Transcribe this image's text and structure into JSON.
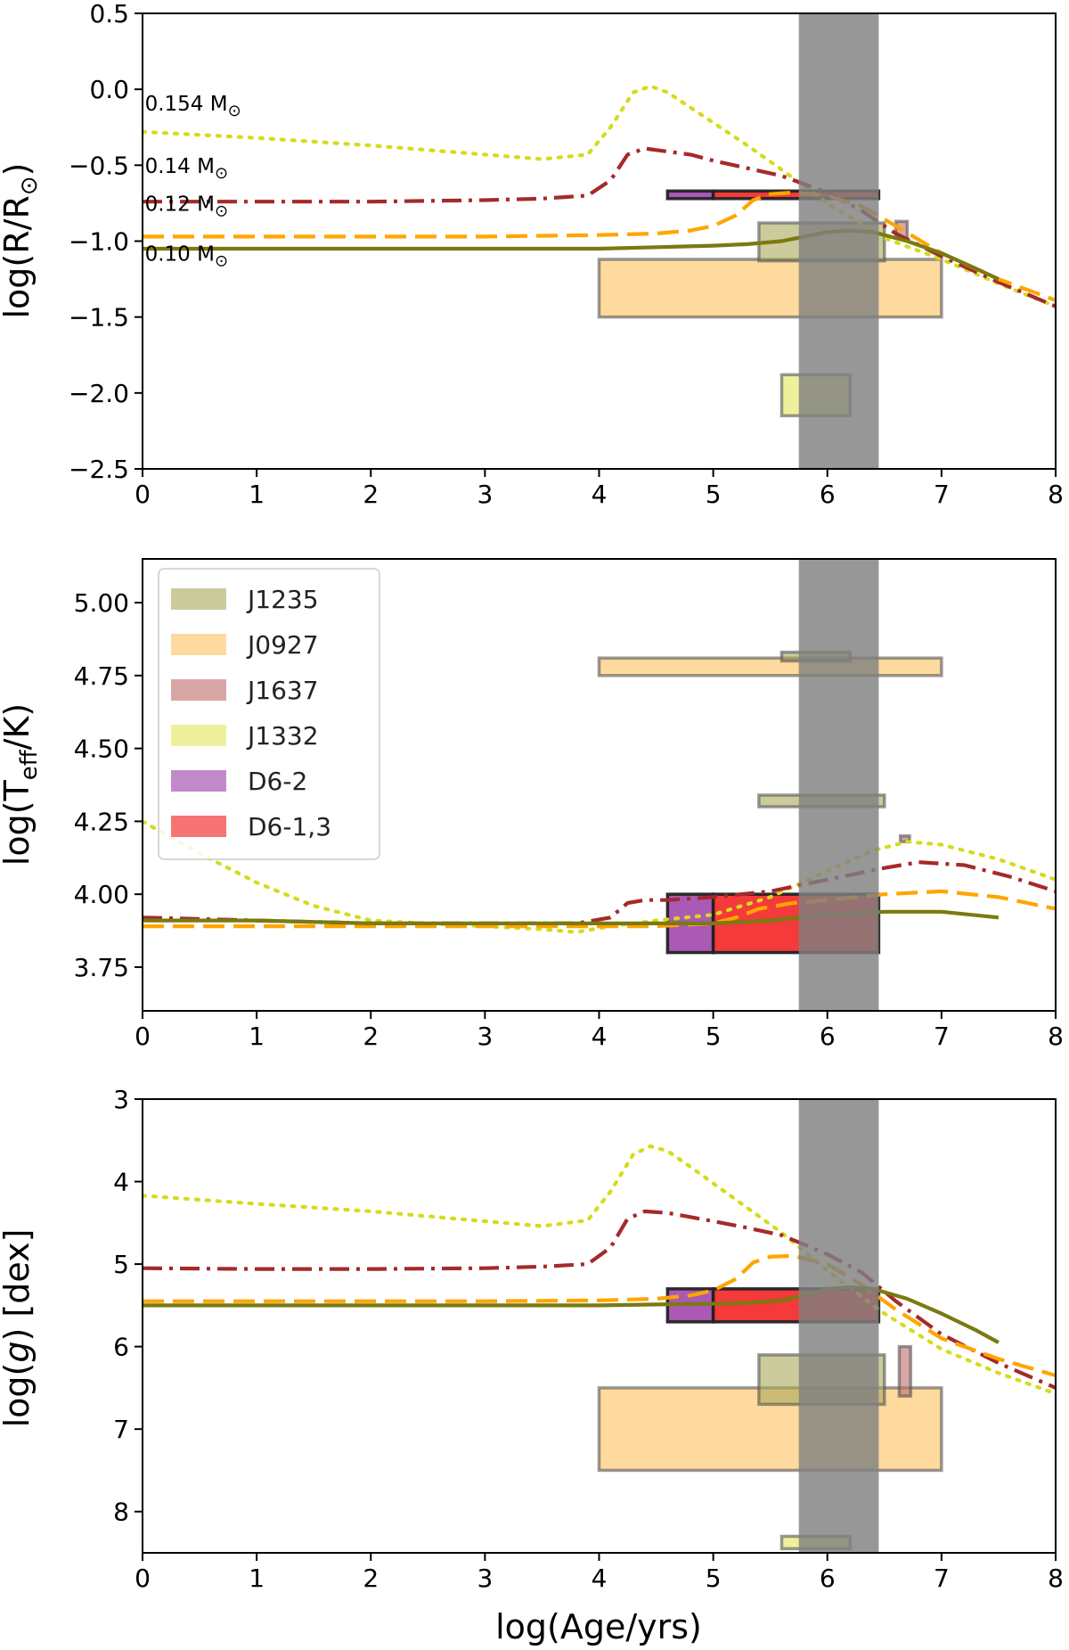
{
  "chart_data": {
    "type": "line",
    "description_xlabel": "log(Age/yrs)",
    "colors": {
      "m0154": "#d4dc1a",
      "m014": "#a52a2a",
      "m012": "#ffa500",
      "m010": "#7a7a10",
      "band": "#808080",
      "J1235": "#a8a85a",
      "J0927": "#fdc15e",
      "J1637": "#c06b6b",
      "J1332": "#e2e65a",
      "D6-2": "#9b3ca8",
      "D6-1,3": "#f21818"
    },
    "legend": {
      "entries": [
        {
          "label": "J1235",
          "key": "J1235"
        },
        {
          "label": "J0927",
          "key": "J0927"
        },
        {
          "label": "J1637",
          "key": "J1637"
        },
        {
          "label": "J1332",
          "key": "J1332"
        },
        {
          "label": "D6-2",
          "key": "D6-2"
        },
        {
          "label": "D6-1,3",
          "key": "D6-1,3"
        }
      ]
    },
    "age_band": [
      5.75,
      6.45
    ],
    "panels": [
      {
        "id": "radius",
        "ylabel_main": "log(R/R",
        "ylabel_sub": "⊙",
        "ylabel_end": ")",
        "xlim": [
          0,
          8
        ],
        "ylim": [
          -2.5,
          0.5
        ],
        "yinvert": false,
        "xticks": [
          "0",
          "1",
          "2",
          "3",
          "4",
          "5",
          "6",
          "7",
          "8"
        ],
        "yticks": [
          {
            "v": 0.5,
            "label": "0.5"
          },
          {
            "v": 0.0,
            "label": "0.0"
          },
          {
            "v": -0.5,
            "label": "−0.5"
          },
          {
            "v": -1.0,
            "label": "−1.0"
          },
          {
            "v": -1.5,
            "label": "−1.5"
          },
          {
            "v": -2.0,
            "label": "−2.0"
          },
          {
            "v": -2.5,
            "label": "−2.5"
          }
        ],
        "annotations": [
          {
            "x": 0.02,
            "y": -0.14,
            "text": "0.154 M",
            "sub": "⊙"
          },
          {
            "x": 0.02,
            "y": -0.55,
            "text": "0.14 M",
            "sub": "⊙"
          },
          {
            "x": 0.02,
            "y": -0.8,
            "text": "0.12 M",
            "sub": "⊙"
          },
          {
            "x": 0.02,
            "y": -1.13,
            "text": "0.10 M",
            "sub": "⊙"
          }
        ],
        "series": [
          {
            "name": "0.154 Msun",
            "key": "m0154",
            "dash": "3,9",
            "x": [
              0,
              1,
              2,
              3,
              3.5,
              3.9,
              4.1,
              4.3,
              4.45,
              4.6,
              4.8,
              5,
              5.3,
              5.6,
              6,
              6.5,
              7,
              7.5,
              8
            ],
            "y": [
              -0.28,
              -0.32,
              -0.37,
              -0.43,
              -0.46,
              -0.43,
              -0.25,
              -0.02,
              0.02,
              -0.02,
              -0.12,
              -0.22,
              -0.37,
              -0.53,
              -0.75,
              -0.98,
              -1.12,
              -1.28,
              -1.43
            ]
          },
          {
            "name": "0.14 Msun",
            "key": "m014",
            "dash": "22,8,4,8",
            "x": [
              0,
              1,
              2,
              3,
              3.5,
              3.9,
              4.1,
              4.25,
              4.4,
              4.6,
              4.8,
              5,
              5.3,
              5.6,
              6,
              6.3,
              6.6,
              7,
              7.5,
              8
            ],
            "y": [
              -0.74,
              -0.74,
              -0.74,
              -0.73,
              -0.72,
              -0.7,
              -0.6,
              -0.43,
              -0.39,
              -0.41,
              -0.43,
              -0.47,
              -0.52,
              -0.57,
              -0.68,
              -0.8,
              -0.95,
              -1.1,
              -1.27,
              -1.43
            ]
          },
          {
            "name": "0.12 Msun",
            "key": "m012",
            "dash": "24,10",
            "x": [
              0,
              1,
              2,
              3,
              4,
              4.5,
              4.8,
              5,
              5.2,
              5.35,
              5.5,
              5.7,
              6,
              6.3,
              6.6,
              7,
              7.5,
              8
            ],
            "y": [
              -0.97,
              -0.97,
              -0.97,
              -0.97,
              -0.96,
              -0.95,
              -0.93,
              -0.9,
              -0.83,
              -0.73,
              -0.69,
              -0.68,
              -0.7,
              -0.77,
              -0.9,
              -1.08,
              -1.25,
              -1.39
            ]
          },
          {
            "name": "0.10 Msun",
            "key": "m010",
            "dash": "",
            "x": [
              0,
              1,
              2,
              3,
              4,
              4.5,
              5,
              5.3,
              5.6,
              5.8,
              6,
              6.2,
              6.4,
              6.7,
              7,
              7.3,
              7.5
            ],
            "y": [
              -1.05,
              -1.05,
              -1.05,
              -1.05,
              -1.05,
              -1.04,
              -1.03,
              -1.02,
              -1.0,
              -0.97,
              -0.94,
              -0.93,
              -0.94,
              -1.0,
              -1.08,
              -1.18,
              -1.25
            ]
          }
        ],
        "boxes": [
          {
            "key": "J0927",
            "x0": 4.0,
            "x1": 7.0,
            "y0": -1.5,
            "y1": -1.12,
            "alpha": 0.6
          },
          {
            "key": "J1235",
            "x0": 5.4,
            "x1": 6.5,
            "y0": -1.13,
            "y1": -0.88,
            "alpha": 0.6
          },
          {
            "key": "J1637",
            "x0": 6.6,
            "x1": 6.7,
            "y0": -0.98,
            "y1": -0.87,
            "alpha": 0.6
          },
          {
            "key": "J1332",
            "x0": 5.6,
            "x1": 6.2,
            "y0": -2.15,
            "y1": -1.88,
            "alpha": 0.6
          },
          {
            "key": "D6-2",
            "x0": 4.6,
            "x1": 5.0,
            "y0": -0.72,
            "y1": -0.67,
            "alpha": 0.85
          },
          {
            "key": "D6-1,3",
            "x0": 5.0,
            "x1": 6.45,
            "y0": -0.72,
            "y1": -0.67,
            "alpha": 0.85
          }
        ]
      },
      {
        "id": "teff",
        "ylabel_main": "log(T",
        "ylabel_sub": "eff",
        "ylabel_end": "/K)",
        "xlim": [
          0,
          8
        ],
        "ylim": [
          3.6,
          5.15
        ],
        "yinvert": false,
        "xticks": [
          "0",
          "1",
          "2",
          "3",
          "4",
          "5",
          "6",
          "7",
          "8"
        ],
        "yticks": [
          {
            "v": 5.0,
            "label": "5.00"
          },
          {
            "v": 4.75,
            "label": "4.75"
          },
          {
            "v": 4.5,
            "label": "4.50"
          },
          {
            "v": 4.25,
            "label": "4.25"
          },
          {
            "v": 4.0,
            "label": "4.00"
          },
          {
            "v": 3.75,
            "label": "3.75"
          }
        ],
        "annotations": [],
        "series": [
          {
            "name": "0.154 Msun",
            "key": "m0154",
            "dash": "3,9",
            "x": [
              0,
              0.5,
              1,
              1.5,
              2,
              2.5,
              3,
              3.5,
              3.8,
              4.1,
              4.5,
              5,
              5.5,
              6,
              6.4,
              6.7,
              7,
              7.5,
              8
            ],
            "y": [
              4.25,
              4.14,
              4.04,
              3.96,
              3.91,
              3.9,
              3.89,
              3.88,
              3.87,
              3.89,
              3.91,
              3.93,
              3.99,
              4.08,
              4.15,
              4.18,
              4.17,
              4.12,
              4.05
            ]
          },
          {
            "name": "0.14 Msun",
            "key": "m014",
            "dash": "22,8,4,8",
            "x": [
              0,
              1,
              2,
              3,
              3.8,
              4.1,
              4.25,
              4.4,
              4.6,
              5,
              5.5,
              6,
              6.5,
              6.8,
              7.2,
              7.6,
              8
            ],
            "y": [
              3.92,
              3.91,
              3.9,
              3.9,
              3.9,
              3.92,
              3.97,
              3.98,
              3.98,
              3.99,
              4.01,
              4.05,
              4.09,
              4.11,
              4.1,
              4.06,
              4.01
            ]
          },
          {
            "name": "0.12 Msun",
            "key": "m012",
            "dash": "24,10",
            "x": [
              0,
              1,
              2,
              3,
              4,
              4.5,
              5,
              5.2,
              5.4,
              5.7,
              6,
              6.5,
              7,
              7.5,
              8
            ],
            "y": [
              3.89,
              3.89,
              3.89,
              3.89,
              3.89,
              3.89,
              3.9,
              3.92,
              3.95,
              3.97,
              3.98,
              4.0,
              4.01,
              3.99,
              3.95
            ]
          },
          {
            "name": "0.10 Msun",
            "key": "m010",
            "dash": "",
            "x": [
              0,
              1,
              2,
              3,
              4,
              5,
              5.5,
              6,
              6.5,
              7,
              7.5
            ],
            "y": [
              3.91,
              3.91,
              3.9,
              3.9,
              3.9,
              3.9,
              3.91,
              3.93,
              3.94,
              3.94,
              3.92
            ]
          }
        ],
        "boxes": [
          {
            "key": "J0927",
            "x0": 4.0,
            "x1": 7.0,
            "y0": 4.75,
            "y1": 4.81,
            "alpha": 0.6
          },
          {
            "key": "J1235",
            "x0": 5.6,
            "x1": 6.2,
            "y0": 4.8,
            "y1": 4.83,
            "alpha": 0.6
          },
          {
            "key": "J1235",
            "x0": 5.4,
            "x1": 6.5,
            "y0": 4.3,
            "y1": 4.34,
            "alpha": 0.6
          },
          {
            "key": "J1637",
            "x0": 6.64,
            "x1": 6.72,
            "y0": 4.18,
            "y1": 4.2,
            "alpha": 0.6
          },
          {
            "key": "D6-2",
            "x0": 4.6,
            "x1": 5.0,
            "y0": 3.8,
            "y1": 4.0,
            "alpha": 0.85
          },
          {
            "key": "D6-1,3",
            "x0": 5.0,
            "x1": 6.45,
            "y0": 3.8,
            "y1": 4.0,
            "alpha": 0.85
          }
        ]
      },
      {
        "id": "logg",
        "ylabel_main": "log(",
        "ylabel_italic": "g",
        "ylabel_end": ") [dex]",
        "xlabel": "log(Age/yrs)",
        "xlim": [
          0,
          8
        ],
        "ylim": [
          3.0,
          8.5
        ],
        "yinvert": true,
        "xticks": [
          "0",
          "1",
          "2",
          "3",
          "4",
          "5",
          "6",
          "7",
          "8"
        ],
        "yticks": [
          {
            "v": 3,
            "label": "3"
          },
          {
            "v": 4,
            "label": "4"
          },
          {
            "v": 5,
            "label": "5"
          },
          {
            "v": 6,
            "label": "6"
          },
          {
            "v": 7,
            "label": "7"
          },
          {
            "v": 8,
            "label": "8"
          }
        ],
        "annotations": [],
        "series": [
          {
            "name": "0.154 Msun",
            "key": "m0154",
            "dash": "3,9",
            "x": [
              0,
              1,
              2,
              3,
              3.5,
              3.9,
              4.1,
              4.3,
              4.45,
              4.6,
              4.8,
              5,
              5.3,
              5.6,
              6,
              6.5,
              7,
              7.5,
              8
            ],
            "y": [
              4.17,
              4.27,
              4.36,
              4.48,
              4.54,
              4.47,
              4.12,
              3.67,
              3.57,
              3.63,
              3.82,
              4.02,
              4.32,
              4.62,
              5.08,
              5.6,
              6.03,
              6.32,
              6.57
            ]
          },
          {
            "name": "0.14 Msun",
            "key": "m014",
            "dash": "22,8,4,8",
            "x": [
              0,
              1,
              2,
              3,
              3.5,
              3.9,
              4.1,
              4.25,
              4.4,
              4.6,
              4.8,
              5,
              5.3,
              5.6,
              6,
              6.3,
              6.6,
              7,
              7.5,
              8
            ],
            "y": [
              5.05,
              5.06,
              5.06,
              5.05,
              5.03,
              5.0,
              4.8,
              4.45,
              4.36,
              4.38,
              4.43,
              4.48,
              4.56,
              4.65,
              4.88,
              5.1,
              5.45,
              5.85,
              6.2,
              6.5
            ]
          },
          {
            "name": "0.12 Msun",
            "key": "m012",
            "dash": "24,10",
            "x": [
              0,
              1,
              2,
              3,
              4,
              4.5,
              4.8,
              5,
              5.2,
              5.35,
              5.5,
              5.7,
              6,
              6.3,
              6.6,
              7,
              7.5,
              8
            ],
            "y": [
              5.45,
              5.45,
              5.45,
              5.45,
              5.44,
              5.42,
              5.38,
              5.32,
              5.18,
              4.98,
              4.91,
              4.9,
              5.0,
              5.25,
              5.55,
              5.9,
              6.15,
              6.35
            ]
          },
          {
            "name": "0.10 Msun",
            "key": "m010",
            "dash": "",
            "x": [
              0,
              1,
              2,
              3,
              4,
              4.5,
              5,
              5.3,
              5.6,
              5.8,
              6,
              6.2,
              6.4,
              6.7,
              7,
              7.3,
              7.5
            ],
            "y": [
              5.5,
              5.5,
              5.5,
              5.5,
              5.5,
              5.49,
              5.48,
              5.47,
              5.44,
              5.38,
              5.3,
              5.28,
              5.3,
              5.42,
              5.6,
              5.8,
              5.95
            ]
          }
        ],
        "boxes": [
          {
            "key": "J0927",
            "x0": 4.0,
            "x1": 7.0,
            "y0": 6.5,
            "y1": 7.5,
            "alpha": 0.6
          },
          {
            "key": "J1235",
            "x0": 5.4,
            "x1": 6.5,
            "y0": 6.1,
            "y1": 6.7,
            "alpha": 0.6
          },
          {
            "key": "J1637",
            "x0": 6.63,
            "x1": 6.73,
            "y0": 6.0,
            "y1": 6.6,
            "alpha": 0.6
          },
          {
            "key": "J1332",
            "x0": 5.6,
            "x1": 6.2,
            "y0": 8.3,
            "y1": 8.45,
            "alpha": 0.6
          },
          {
            "key": "D6-2",
            "x0": 4.6,
            "x1": 5.0,
            "y0": 5.3,
            "y1": 5.7,
            "alpha": 0.85
          },
          {
            "key": "D6-1,3",
            "x0": 5.0,
            "x1": 6.45,
            "y0": 5.3,
            "y1": 5.7,
            "alpha": 0.85
          }
        ]
      }
    ]
  }
}
